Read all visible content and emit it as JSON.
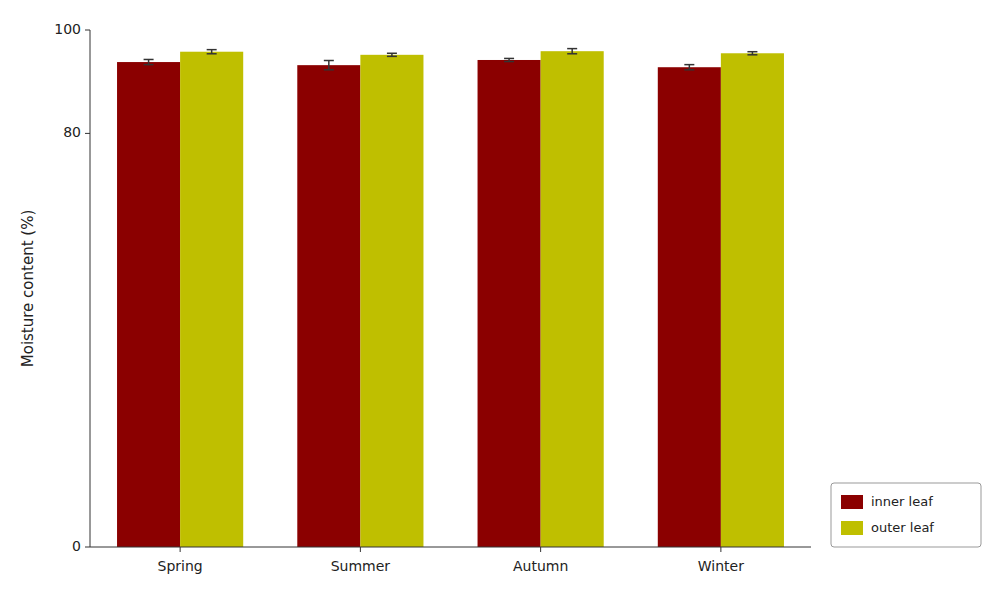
{
  "chart_data": {
    "type": "bar",
    "y_label": "Moisture content (%)",
    "categories": [
      "Spring",
      "Summer",
      "Autumn",
      "Winter"
    ],
    "series": [
      {
        "name": "inner leaf",
        "color": "#8B0000",
        "values": [
          93.8,
          93.2,
          94.2,
          92.8
        ],
        "errors": [
          0.5,
          0.9,
          0.3,
          0.5
        ]
      },
      {
        "name": "outer leaf",
        "color": "#BFBF00",
        "values": [
          95.8,
          95.2,
          95.9,
          95.5
        ],
        "errors": [
          0.4,
          0.3,
          0.5,
          0.3
        ]
      }
    ],
    "ylim": [
      0,
      100
    ],
    "yticks": [
      0,
      80,
      100
    ],
    "grid": false,
    "legend": "lower right"
  }
}
